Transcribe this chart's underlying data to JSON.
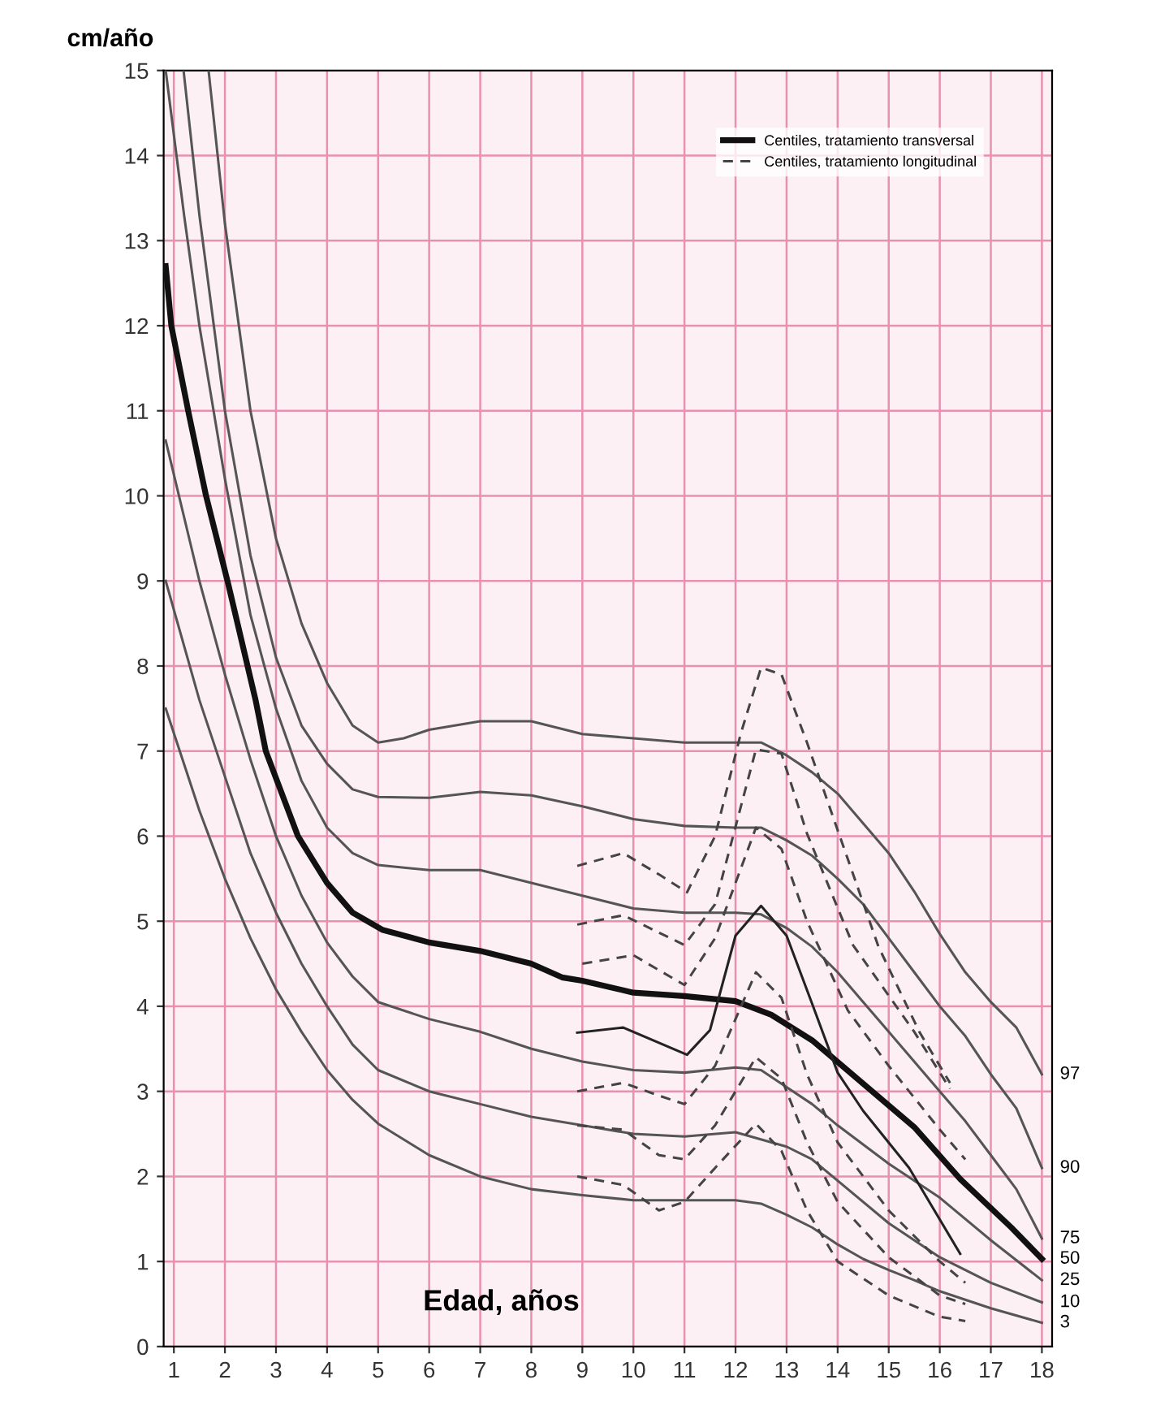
{
  "chart_data": {
    "type": "line",
    "xlabel": "Edad, años",
    "ylabel": "cm/año",
    "xlim": [
      0.8,
      18.2
    ],
    "ylim": [
      0,
      15
    ],
    "xticks": [
      1,
      2,
      3,
      4,
      5,
      6,
      7,
      8,
      9,
      10,
      11,
      12,
      13,
      14,
      15,
      16,
      17,
      18
    ],
    "yticks": [
      0,
      1,
      2,
      3,
      4,
      5,
      6,
      7,
      8,
      9,
      10,
      11,
      12,
      13,
      14,
      15
    ],
    "grid": true,
    "legend": "top right",
    "marker": "none",
    "series": [
      {
        "color": "#555555",
        "line_style": "solid",
        "x": [
          1.68,
          2.0,
          2.5,
          3.0,
          3.5,
          4.0,
          4.5,
          5.0,
          5.5,
          6,
          7,
          8,
          9,
          10,
          11,
          12,
          12.5,
          13,
          13.5,
          14,
          14.5,
          15,
          15.5,
          16,
          16.5,
          17,
          17.5,
          18
        ],
        "values": [
          15,
          13.2,
          11.0,
          9.5,
          8.5,
          7.8,
          7.3,
          7.1,
          7.15,
          7.25,
          7.35,
          7.35,
          7.2,
          7.15,
          7.1,
          7.1,
          7.1,
          6.95,
          6.75,
          6.5,
          6.15,
          5.8,
          5.35,
          4.85,
          4.4,
          4.05,
          3.75,
          3.2
        ]
      },
      {
        "color": "#555555",
        "line_style": "solid",
        "x": [
          1.19,
          1.5,
          2,
          2.5,
          3,
          3.5,
          4,
          4.5,
          5,
          6,
          7,
          8,
          9,
          10,
          11,
          12,
          12.5,
          13,
          13.5,
          14,
          14.5,
          15,
          15.5,
          16,
          16.5,
          17,
          17.5,
          18
        ],
        "values": [
          15,
          13.3,
          11.0,
          9.3,
          8.1,
          7.3,
          6.85,
          6.55,
          6.46,
          6.45,
          6.52,
          6.48,
          6.35,
          6.2,
          6.12,
          6.1,
          6.1,
          5.95,
          5.77,
          5.5,
          5.2,
          4.8,
          4.4,
          4.0,
          3.65,
          3.2,
          2.8,
          2.1
        ]
      },
      {
        "color": "#555555",
        "line_style": "solid",
        "x": [
          0.84,
          1.2,
          1.5,
          2,
          2.5,
          3,
          3.5,
          4,
          4.5,
          5,
          6,
          7,
          8,
          9,
          10,
          11,
          12,
          12.5,
          13,
          13.5,
          14,
          14.5,
          15,
          15.5,
          16,
          16.5,
          17,
          17.5,
          18
        ],
        "values": [
          15,
          13.3,
          12.0,
          10.2,
          8.6,
          7.5,
          6.65,
          6.1,
          5.8,
          5.66,
          5.6,
          5.6,
          5.45,
          5.3,
          5.15,
          5.1,
          5.1,
          5.08,
          4.92,
          4.7,
          4.4,
          4.05,
          3.7,
          3.35,
          3.0,
          2.65,
          2.25,
          1.85,
          1.27
        ]
      },
      {
        "name": "Centiles, tratamiento transversal",
        "color": "#111111",
        "line_style": "solid",
        "x": [
          0.84,
          0.95,
          1.28,
          1.63,
          2.07,
          2.6,
          2.8,
          3.43,
          4.0,
          4.5,
          5.08,
          6,
          7,
          8,
          8.6,
          9,
          10,
          11,
          12,
          12.7,
          13.5,
          14.5,
          15.5,
          16.4,
          17.4,
          18
        ],
        "values": [
          12.7,
          12.0,
          11.0,
          10.0,
          8.95,
          7.6,
          7.0,
          6.0,
          5.45,
          5.1,
          4.9,
          4.75,
          4.65,
          4.5,
          4.34,
          4.3,
          4.16,
          4.12,
          4.06,
          3.9,
          3.6,
          3.09,
          2.58,
          1.97,
          1.4,
          1.03
        ]
      },
      {
        "color": "#555555",
        "line_style": "solid",
        "x": [
          0.84,
          1.5,
          2,
          2.5,
          3,
          3.5,
          4,
          4.5,
          5,
          6,
          7,
          8,
          9,
          10,
          11,
          12,
          12.5,
          13,
          13.5,
          14,
          15,
          16,
          17,
          18
        ],
        "values": [
          10.65,
          9.0,
          7.9,
          6.9,
          6.0,
          5.3,
          4.75,
          4.35,
          4.05,
          3.85,
          3.7,
          3.5,
          3.35,
          3.25,
          3.22,
          3.28,
          3.25,
          3.05,
          2.85,
          2.6,
          2.15,
          1.75,
          1.25,
          0.78
        ]
      },
      {
        "color": "#555555",
        "line_style": "solid",
        "x": [
          0.84,
          1.5,
          2,
          2.5,
          3,
          3.5,
          4,
          4.5,
          5,
          6,
          7,
          8,
          9,
          10,
          11,
          12,
          13,
          13.5,
          14,
          15,
          16,
          17,
          18
        ],
        "values": [
          9.0,
          7.6,
          6.7,
          5.8,
          5.1,
          4.5,
          4.0,
          3.55,
          3.25,
          3.0,
          2.85,
          2.7,
          2.6,
          2.5,
          2.47,
          2.52,
          2.35,
          2.2,
          1.95,
          1.45,
          1.05,
          0.75,
          0.52
        ]
      },
      {
        "color": "#555555",
        "line_style": "solid",
        "x": [
          0.84,
          1.5,
          2,
          2.5,
          3,
          3.5,
          4,
          4.5,
          5,
          6,
          7,
          8,
          9,
          10,
          11,
          12,
          12.5,
          13,
          13.5,
          14,
          14.5,
          15,
          15.5,
          16,
          17,
          18
        ],
        "values": [
          7.5,
          6.3,
          5.5,
          4.8,
          4.2,
          3.7,
          3.25,
          2.9,
          2.62,
          2.25,
          2.0,
          1.85,
          1.78,
          1.72,
          1.72,
          1.72,
          1.68,
          1.55,
          1.4,
          1.2,
          1.03,
          0.9,
          0.78,
          0.65,
          0.45,
          0.28
        ]
      },
      {
        "name": "Centiles, tratamiento longitudinal",
        "color": "#444444",
        "line_style": "dashed",
        "x": [
          8.9,
          9.8,
          10.5,
          11.05,
          11.6,
          12.1,
          12.5,
          12.9,
          13.4,
          14.1,
          14.8,
          15.6,
          16.2
        ],
        "values": [
          5.65,
          5.8,
          5.55,
          5.34,
          6.0,
          7.2,
          7.98,
          7.9,
          7.1,
          5.9,
          4.7,
          3.7,
          3.1
        ]
      },
      {
        "color": "#444444",
        "line_style": "dashed",
        "x": [
          8.9,
          9.8,
          11.0,
          11.6,
          12.4,
          12.9,
          13.4,
          14.3,
          15.5,
          16.2
        ],
        "values": [
          4.96,
          5.07,
          4.72,
          5.2,
          7.02,
          6.97,
          6.03,
          4.72,
          3.7,
          3.03
        ]
      },
      {
        "color": "#444444",
        "line_style": "dashed",
        "x": [
          9.0,
          10,
          11,
          11.6,
          12.4,
          12.9,
          13.4,
          14.2,
          15,
          16,
          16.5
        ],
        "values": [
          4.5,
          4.6,
          4.25,
          4.8,
          6.1,
          5.85,
          5.0,
          3.95,
          3.3,
          2.55,
          2.2
        ]
      },
      {
        "color": "#222222",
        "line_style": "solid",
        "x": [
          8.9,
          9.8,
          11.05,
          11.5,
          12.0,
          12.5,
          13.0,
          13.5,
          14.0,
          14.5,
          15.4,
          16.4
        ],
        "values": [
          3.69,
          3.75,
          3.43,
          3.72,
          4.83,
          5.18,
          4.83,
          4.03,
          3.22,
          2.77,
          2.1,
          1.09
        ]
      },
      {
        "color": "#444444",
        "line_style": "dashed",
        "x": [
          8.9,
          9.8,
          10.5,
          11.0,
          11.6,
          12.4,
          12.9,
          13.4,
          14.0,
          15,
          16,
          16.5
        ],
        "values": [
          3.0,
          3.1,
          2.95,
          2.85,
          3.3,
          4.4,
          4.1,
          3.2,
          2.4,
          1.6,
          1.0,
          0.75
        ]
      },
      {
        "color": "#444444",
        "line_style": "dashed",
        "x": [
          8.9,
          9.8,
          10.5,
          11.0,
          11.6,
          12.4,
          12.9,
          13.4,
          14.0,
          15,
          16,
          16.5
        ],
        "values": [
          2.6,
          2.55,
          2.25,
          2.2,
          2.6,
          3.4,
          3.15,
          2.4,
          1.7,
          1.05,
          0.6,
          0.5
        ]
      },
      {
        "color": "#444444",
        "line_style": "dashed",
        "x": [
          8.9,
          9.8,
          10.5,
          11.0,
          11.6,
          12.4,
          12.9,
          13.4,
          14,
          15,
          16,
          16.5
        ],
        "values": [
          2.0,
          1.9,
          1.6,
          1.7,
          2.1,
          2.62,
          2.3,
          1.6,
          1.0,
          0.6,
          0.35,
          0.3
        ]
      }
    ],
    "annotations": [
      "97",
      "90",
      "75",
      "50",
      "25",
      "10",
      "3"
    ]
  }
}
